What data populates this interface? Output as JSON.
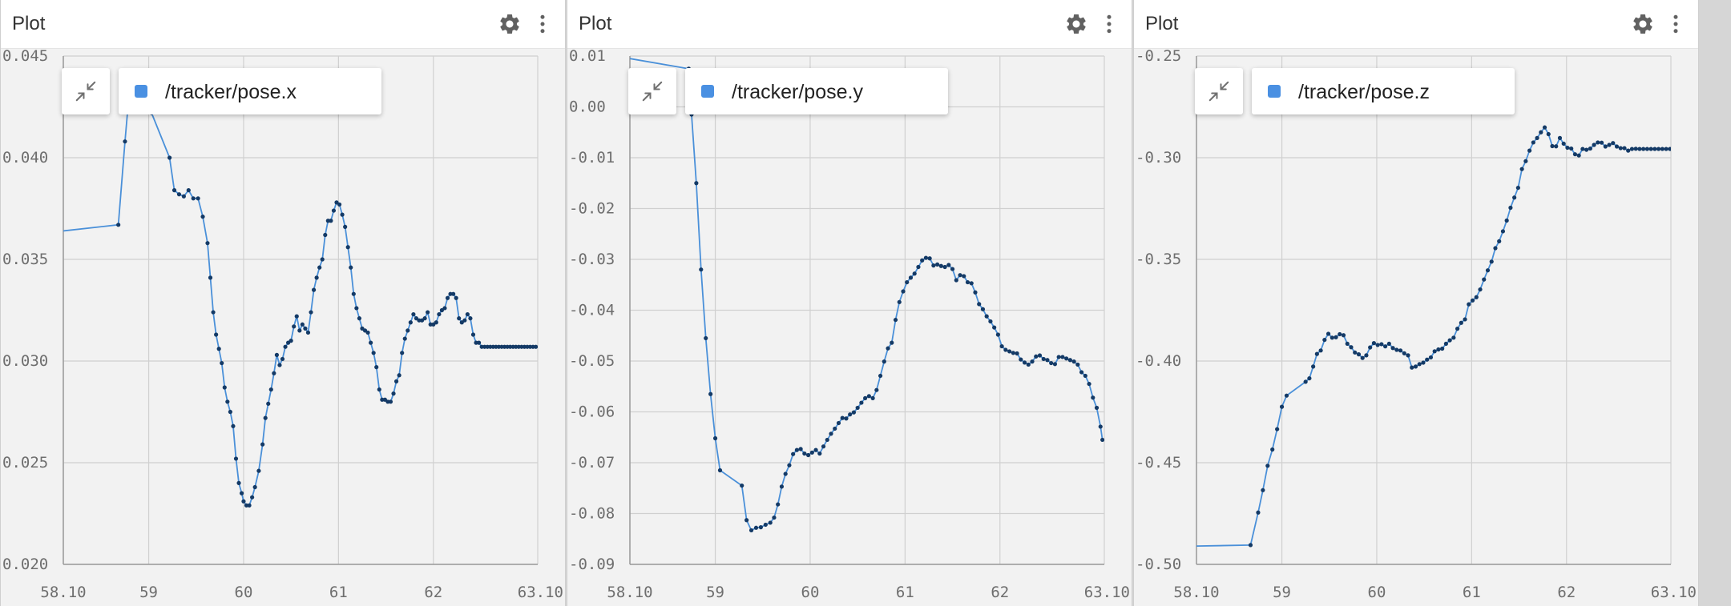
{
  "colors": {
    "line": "#4a90d9",
    "marker": "#143a66",
    "swatch": "#4a90e2",
    "grid": "#d0d0d0",
    "axis": "#9a9a9a"
  },
  "icons": {
    "settings": "gear-icon",
    "menu": "vertical-dots-icon",
    "collapse": "collapse-arrows-icon"
  },
  "panels": [
    {
      "title": "Plot",
      "legend_label": "/tracker/pose.x"
    },
    {
      "title": "Plot",
      "legend_label": "/tracker/pose.y"
    },
    {
      "title": "Plot",
      "legend_label": "/tracker/pose.z"
    }
  ],
  "chart_data": [
    {
      "type": "line",
      "xlim": [
        58.1,
        63.1
      ],
      "ylim": [
        0.02,
        0.045
      ],
      "x_tick_labels": [
        "58.10",
        "59",
        "60",
        "61",
        "62",
        "63.10"
      ],
      "y_tick_labels": [
        "0.020",
        "0.025",
        "0.030",
        "0.035",
        "0.040",
        "0.045"
      ],
      "y_ticks": [
        0.02,
        0.025,
        0.03,
        0.035,
        0.04,
        0.045
      ],
      "x_ticks": [
        58.1,
        59,
        60,
        61,
        62,
        63.1
      ],
      "series": [
        {
          "x": [
            58.1,
            58.68,
            58.75,
            58.8,
            59.03,
            59.22,
            59.27,
            59.32,
            59.37,
            59.42,
            59.47,
            59.52,
            59.57,
            59.62,
            59.65,
            59.68,
            59.71,
            59.74,
            59.77,
            59.8,
            59.83,
            59.86,
            59.89,
            59.92,
            59.95,
            59.98,
            60.0,
            60.03,
            60.06,
            60.09,
            60.12,
            60.16,
            60.2,
            60.23,
            60.26,
            60.29,
            60.32,
            60.35,
            60.38,
            60.41,
            60.44,
            60.47,
            60.5,
            60.53,
            60.56,
            60.59,
            60.62,
            60.65,
            60.68,
            60.71,
            60.74,
            60.77,
            60.8,
            60.83,
            60.86,
            60.89,
            60.92,
            60.95,
            60.98,
            61.01,
            61.04,
            61.07,
            61.1,
            61.13,
            61.16,
            61.19,
            61.22,
            61.25,
            61.28,
            61.31,
            61.34,
            61.37,
            61.4,
            61.43,
            61.46,
            61.49,
            61.52,
            61.55,
            61.58,
            61.61,
            61.64,
            61.67,
            61.7,
            61.73,
            61.76,
            61.79,
            61.82,
            61.85,
            61.88,
            61.91,
            61.94,
            61.97,
            62.0,
            62.03,
            62.06,
            62.09,
            62.12,
            62.15,
            62.18,
            62.21,
            62.24,
            62.27,
            62.3,
            62.33,
            62.36,
            62.39,
            62.42,
            62.45,
            62.48,
            62.51,
            62.54,
            62.57,
            62.6,
            62.63,
            62.66,
            62.69,
            62.72,
            62.75,
            62.78,
            62.81,
            62.84,
            62.87,
            62.9,
            62.93,
            62.96,
            62.99,
            63.02,
            63.05,
            63.08
          ],
          "y": [
            0.0364,
            0.0367,
            0.0408,
            0.0435,
            0.0422,
            0.04,
            0.0384,
            0.0382,
            0.0381,
            0.0384,
            0.038,
            0.038,
            0.0371,
            0.0358,
            0.0341,
            0.0324,
            0.0313,
            0.0306,
            0.0299,
            0.0287,
            0.028,
            0.0275,
            0.0268,
            0.0252,
            0.024,
            0.0235,
            0.0231,
            0.0229,
            0.0229,
            0.0233,
            0.0238,
            0.0246,
            0.0259,
            0.0272,
            0.0279,
            0.0286,
            0.0294,
            0.0303,
            0.0298,
            0.0301,
            0.0307,
            0.0309,
            0.031,
            0.0317,
            0.0322,
            0.0315,
            0.0318,
            0.0316,
            0.0314,
            0.0324,
            0.0335,
            0.0341,
            0.0346,
            0.035,
            0.0362,
            0.0369,
            0.0369,
            0.0374,
            0.0378,
            0.0377,
            0.0372,
            0.0366,
            0.0356,
            0.0346,
            0.0333,
            0.0326,
            0.0321,
            0.0316,
            0.0315,
            0.0314,
            0.0309,
            0.0304,
            0.0297,
            0.0286,
            0.0281,
            0.0281,
            0.028,
            0.028,
            0.0284,
            0.029,
            0.0293,
            0.0304,
            0.0311,
            0.0315,
            0.0319,
            0.0323,
            0.0321,
            0.032,
            0.032,
            0.0321,
            0.0324,
            0.0318,
            0.0318,
            0.0319,
            0.0323,
            0.0325,
            0.0326,
            0.0331,
            0.0333,
            0.0333,
            0.0331,
            0.0321,
            0.0319,
            0.032,
            0.0323,
            0.0321,
            0.0313,
            0.0309,
            0.0309,
            0.0307,
            0.0307,
            0.0307,
            0.0307,
            0.0307,
            0.0307,
            0.0307,
            0.0307,
            0.0307,
            0.0307,
            0.0307,
            0.0307,
            0.0307,
            0.0307,
            0.0307,
            0.0307,
            0.0307,
            0.0307,
            0.0307,
            0.0307
          ]
        }
      ]
    },
    {
      "type": "line",
      "xlim": [
        58.1,
        63.1
      ],
      "ylim": [
        -0.09,
        0.01
      ],
      "x_tick_labels": [
        "58.10",
        "59",
        "60",
        "61",
        "62",
        "63.10"
      ],
      "y_tick_labels": [
        "-0.09",
        "-0.08",
        "-0.07",
        "-0.06",
        "-0.05",
        "-0.04",
        "-0.03",
        "-0.02",
        "-0.01",
        "0.00",
        "0.01"
      ],
      "y_ticks": [
        -0.09,
        -0.08,
        -0.07,
        -0.06,
        -0.05,
        -0.04,
        -0.03,
        -0.02,
        -0.01,
        0.0,
        0.01
      ],
      "x_ticks": [
        58.1,
        59,
        60,
        61,
        62,
        63.1
      ],
      "series": [
        {
          "x": [
            58.1,
            58.72,
            58.75,
            58.8,
            58.85,
            58.9,
            58.95,
            59.0,
            59.05,
            59.28,
            59.33,
            59.38,
            59.43,
            59.48,
            59.53,
            59.58,
            59.62,
            59.66,
            59.7,
            59.74,
            59.78,
            59.82,
            59.86,
            59.9,
            59.94,
            59.98,
            60.02,
            60.06,
            60.1,
            60.14,
            60.18,
            60.22,
            60.26,
            60.3,
            60.34,
            60.38,
            60.42,
            60.46,
            60.5,
            60.54,
            60.58,
            60.62,
            60.66,
            60.7,
            60.74,
            60.78,
            60.82,
            60.86,
            60.9,
            60.94,
            60.98,
            61.02,
            61.06,
            61.1,
            61.14,
            61.18,
            61.22,
            61.26,
            61.3,
            61.34,
            61.38,
            61.42,
            61.46,
            61.5,
            61.54,
            61.58,
            61.62,
            61.66,
            61.7,
            61.74,
            61.78,
            61.82,
            61.86,
            61.9,
            61.94,
            61.98,
            62.02,
            62.06,
            62.1,
            62.14,
            62.18,
            62.22,
            62.26,
            62.3,
            62.34,
            62.38,
            62.42,
            62.46,
            62.5,
            62.54,
            62.58,
            62.62,
            62.66,
            62.7,
            62.74,
            62.78,
            62.82,
            62.86,
            62.9,
            62.94,
            62.98,
            63.02,
            63.06,
            63.08
          ],
          "y": [
            0.0095,
            0.0075,
            -0.0015,
            -0.015,
            -0.032,
            -0.0455,
            -0.0565,
            -0.0652,
            -0.0715,
            -0.0745,
            -0.0813,
            -0.0833,
            -0.0828,
            -0.0827,
            -0.0822,
            -0.0818,
            -0.0808,
            -0.0782,
            -0.0747,
            -0.0722,
            -0.0705,
            -0.0683,
            -0.0675,
            -0.0673,
            -0.0682,
            -0.0685,
            -0.068,
            -0.0675,
            -0.0682,
            -0.0668,
            -0.0655,
            -0.0643,
            -0.0633,
            -0.0622,
            -0.0612,
            -0.0613,
            -0.0605,
            -0.0601,
            -0.0592,
            -0.0582,
            -0.0573,
            -0.0569,
            -0.0573,
            -0.0557,
            -0.0529,
            -0.0501,
            -0.0475,
            -0.0464,
            -0.0419,
            -0.0384,
            -0.0363,
            -0.0345,
            -0.0336,
            -0.0328,
            -0.0315,
            -0.0302,
            -0.0297,
            -0.0298,
            -0.0312,
            -0.031,
            -0.0313,
            -0.0315,
            -0.0311,
            -0.0319,
            -0.0341,
            -0.0331,
            -0.0333,
            -0.0345,
            -0.0347,
            -0.0365,
            -0.0388,
            -0.0398,
            -0.0412,
            -0.0422,
            -0.0434,
            -0.0448,
            -0.0471,
            -0.0478,
            -0.0481,
            -0.0484,
            -0.0485,
            -0.0497,
            -0.0503,
            -0.0507,
            -0.0501,
            -0.0491,
            -0.0489,
            -0.0496,
            -0.0498,
            -0.0504,
            -0.0506,
            -0.0492,
            -0.0492,
            -0.0495,
            -0.0498,
            -0.0501,
            -0.0507,
            -0.0522,
            -0.0529,
            -0.0545,
            -0.0572,
            -0.0592,
            -0.0629,
            -0.0655
          ]
        }
      ]
    },
    {
      "type": "line",
      "xlim": [
        58.1,
        63.1
      ],
      "ylim": [
        -0.5,
        -0.25
      ],
      "x_tick_labels": [
        "58.10",
        "59",
        "60",
        "61",
        "62",
        "63.10"
      ],
      "y_tick_labels": [
        "-0.50",
        "-0.45",
        "-0.40",
        "-0.35",
        "-0.30",
        "-0.25"
      ],
      "y_ticks": [
        -0.5,
        -0.45,
        -0.4,
        -0.35,
        -0.3,
        -0.25
      ],
      "x_ticks": [
        58.1,
        59,
        60,
        61,
        62,
        63.1
      ],
      "series": [
        {
          "x": [
            58.1,
            58.67,
            58.75,
            58.8,
            58.85,
            58.9,
            58.95,
            59.0,
            59.05,
            59.25,
            59.29,
            59.33,
            59.37,
            59.41,
            59.45,
            59.49,
            59.53,
            59.57,
            59.61,
            59.65,
            59.69,
            59.73,
            59.77,
            59.81,
            59.85,
            59.89,
            59.93,
            59.97,
            60.01,
            60.05,
            60.09,
            60.13,
            60.17,
            60.21,
            60.25,
            60.29,
            60.33,
            60.37,
            60.41,
            60.45,
            60.49,
            60.53,
            60.57,
            60.61,
            60.65,
            60.69,
            60.73,
            60.77,
            60.81,
            60.85,
            60.89,
            60.93,
            60.97,
            61.01,
            61.05,
            61.09,
            61.13,
            61.17,
            61.21,
            61.25,
            61.29,
            61.33,
            61.37,
            61.41,
            61.45,
            61.49,
            61.53,
            61.57,
            61.61,
            61.65,
            61.69,
            61.73,
            61.77,
            61.81,
            61.85,
            61.89,
            61.93,
            61.97,
            62.01,
            62.05,
            62.09,
            62.13,
            62.17,
            62.21,
            62.25,
            62.29,
            62.33,
            62.37,
            62.41,
            62.45,
            62.49,
            62.53,
            62.57,
            62.61,
            62.65,
            62.69,
            62.73,
            62.77,
            62.81,
            62.85,
            62.89,
            62.93,
            62.97,
            63.01,
            63.05,
            63.09
          ],
          "y": [
            -0.491,
            -0.4905,
            -0.4745,
            -0.4635,
            -0.4515,
            -0.4435,
            -0.4335,
            -0.4225,
            -0.417,
            -0.4102,
            -0.4085,
            -0.4027,
            -0.3965,
            -0.3948,
            -0.3896,
            -0.3866,
            -0.3885,
            -0.3883,
            -0.3868,
            -0.3873,
            -0.3915,
            -0.3932,
            -0.3958,
            -0.3967,
            -0.3985,
            -0.3972,
            -0.3933,
            -0.3912,
            -0.3921,
            -0.3917,
            -0.3928,
            -0.3915,
            -0.3936,
            -0.3945,
            -0.3948,
            -0.3962,
            -0.3972,
            -0.4032,
            -0.4027,
            -0.4015,
            -0.4008,
            -0.3993,
            -0.3982,
            -0.3952,
            -0.3943,
            -0.3939,
            -0.3915,
            -0.3898,
            -0.3885,
            -0.3841,
            -0.3812,
            -0.3795,
            -0.3721,
            -0.3702,
            -0.3686,
            -0.3648,
            -0.3599,
            -0.3554,
            -0.3511,
            -0.3445,
            -0.3411,
            -0.3362,
            -0.3309,
            -0.3246,
            -0.3196,
            -0.3148,
            -0.3056,
            -0.3017,
            -0.2965,
            -0.2925,
            -0.2903,
            -0.2875,
            -0.2851,
            -0.2884,
            -0.2943,
            -0.2944,
            -0.2903,
            -0.2931,
            -0.2951,
            -0.2955,
            -0.2983,
            -0.2989,
            -0.2957,
            -0.2961,
            -0.2955,
            -0.2937,
            -0.2925,
            -0.2926,
            -0.2945,
            -0.2937,
            -0.2928,
            -0.2945,
            -0.2953,
            -0.2953,
            -0.2965,
            -0.2957,
            -0.2956,
            -0.2957,
            -0.2957,
            -0.2957,
            -0.2957,
            -0.2957,
            -0.2957,
            -0.2957,
            -0.2957,
            -0.2957
          ]
        }
      ]
    }
  ]
}
